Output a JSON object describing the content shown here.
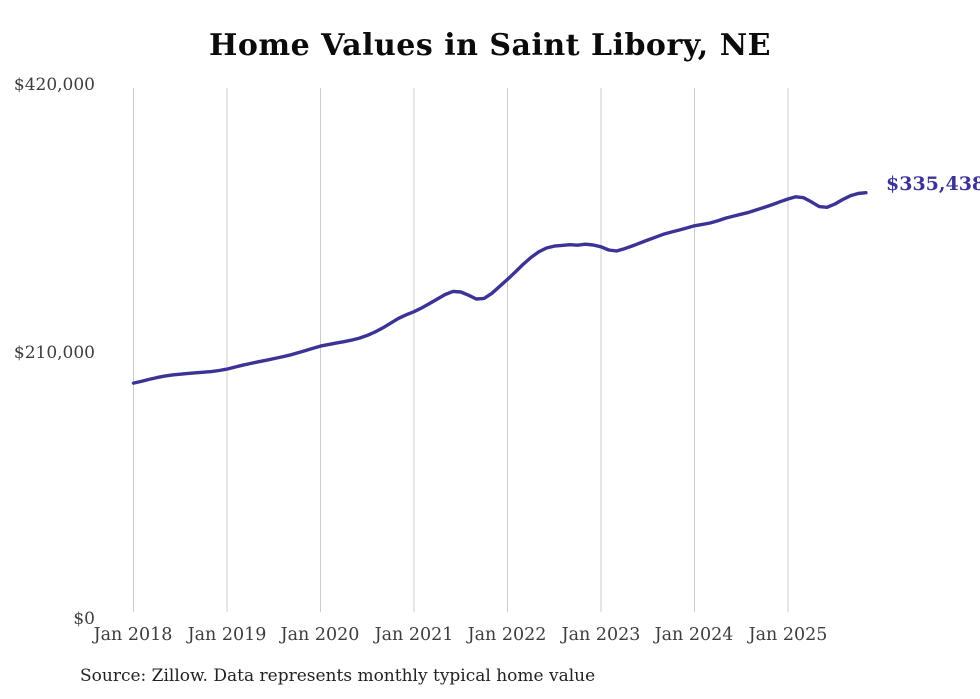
{
  "title": "Home Values in Saint Libory, NE",
  "source_note": "Source: Zillow. Data represents monthly typical home value",
  "end_label": "$335,438",
  "colors": {
    "line": "#3B3396",
    "grid": "#cccccc",
    "title_text": "#0b0b0b",
    "axis_text": "#3d3d3d",
    "background": "#ffffff"
  },
  "y_axis": {
    "ticks": [
      "$0",
      "$210,000",
      "$420,000"
    ]
  },
  "x_axis": {
    "ticks": [
      "Jan 2018",
      "Jan 2019",
      "Jan 2020",
      "Jan 2021",
      "Jan 2022",
      "Jan 2023",
      "Jan 2024",
      "Jan 2025"
    ]
  },
  "chart_data": {
    "type": "line",
    "title": "Home Values in Saint Libory, NE",
    "xlabel": "",
    "ylabel": "",
    "ylim": [
      0,
      420000
    ],
    "y_tick_values": [
      0,
      210000,
      420000
    ],
    "y_tick_labels": [
      "$0",
      "$210,000",
      "$420,000"
    ],
    "x_tick_labels": [
      "Jan 2018",
      "Jan 2019",
      "Jan 2020",
      "Jan 2021",
      "Jan 2022",
      "Jan 2023",
      "Jan 2024",
      "Jan 2025"
    ],
    "grid": "vertical-only",
    "legend": "none",
    "end_annotation": "$335,438",
    "series": [
      {
        "name": "Monthly typical home value",
        "start_month": "2018-01",
        "end_month": "2025-11",
        "frequency": "monthly",
        "values": [
          186000,
          187300,
          188900,
          190300,
          191500,
          192400,
          193000,
          193600,
          194100,
          194500,
          195000,
          195900,
          197000,
          198500,
          200000,
          201400,
          202700,
          203900,
          205200,
          206500,
          207900,
          209600,
          211400,
          213200,
          215000,
          216200,
          217400,
          218500,
          219700,
          221300,
          223400,
          226100,
          229300,
          233000,
          236800,
          239600,
          242000,
          245000,
          248500,
          252000,
          255500,
          258000,
          257500,
          255000,
          252000,
          252500,
          256500,
          262000,
          267400,
          273200,
          279200,
          284600,
          289000,
          292000,
          293500,
          294100,
          294600,
          294200,
          295000,
          294400,
          293000,
          290500,
          289700,
          291500,
          293600,
          296000,
          298300,
          300500,
          302800,
          304500,
          306100,
          307700,
          309500,
          310600,
          311700,
          313500,
          315500,
          317100,
          318600,
          320100,
          322000,
          324100,
          326100,
          328400,
          330500,
          332200,
          331500,
          328200,
          324500,
          324000,
          326500,
          330000,
          333000,
          334800,
          335438
        ]
      }
    ]
  }
}
